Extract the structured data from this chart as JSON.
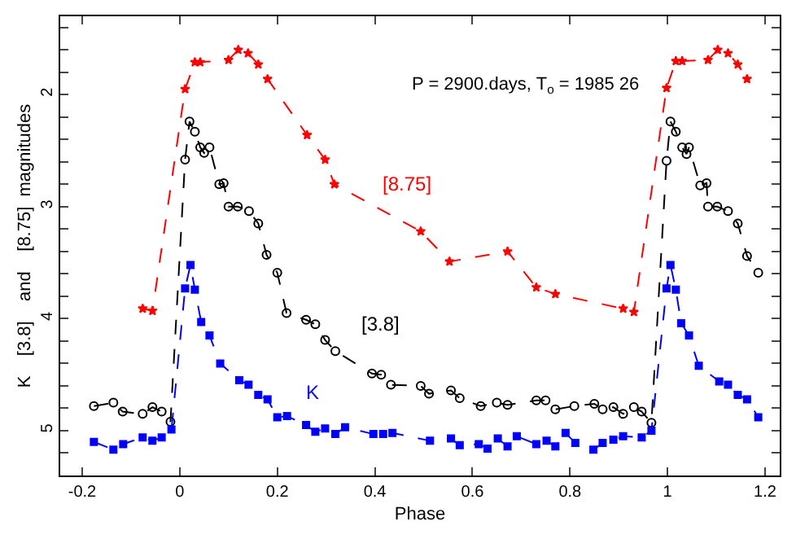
{
  "chart_data": {
    "type": "line",
    "title": "P = 2900.days, T$_{o}$ = 1985 26",
    "xlabel": "Phase",
    "ylabel": "K    [3.8]    and    [8.75]  magnitudes",
    "xlim": [
      -0.245,
      1.23
    ],
    "xticks": [
      -0.2,
      0,
      0.2,
      0.4,
      0.6,
      0.8,
      1,
      1.2
    ],
    "ylim": [
      5.4,
      1.3
    ],
    "yticks": [
      {
        "value": 1.4,
        "label": null
      },
      {
        "value": 1.6,
        "label": null
      },
      {
        "value": 1.8,
        "label": null
      },
      2,
      {
        "value": 2.2,
        "label": null
      },
      {
        "value": 2.4,
        "label": null
      },
      {
        "value": 2.6,
        "label": null
      },
      {
        "value": 2.8,
        "label": null
      },
      3,
      {
        "value": 3.2,
        "label": null
      },
      {
        "value": 3.4,
        "label": null
      },
      {
        "value": 3.6,
        "label": null
      },
      {
        "value": 3.8,
        "label": null
      },
      4,
      {
        "value": 4.2,
        "label": null
      },
      {
        "value": 4.4,
        "label": null
      },
      {
        "value": 4.6,
        "label": null
      },
      {
        "value": 4.8,
        "label": null
      },
      5,
      {
        "value": 5.2,
        "label": null
      }
    ],
    "grid": false,
    "legend": false,
    "line_style": "dashed",
    "series": [
      {
        "name": "[8.75]",
        "color": "#ff0000",
        "marker": "star",
        "x": [
          -0.076,
          -0.056,
          0.011,
          0.031,
          0.042,
          0.1,
          0.12,
          0.14,
          0.161,
          0.18,
          0.261,
          0.298,
          0.317,
          0.494,
          0.553,
          0.672,
          0.731,
          0.77,
          0.909,
          0.931,
          0.998,
          1.017,
          1.03,
          1.083,
          1.103,
          1.124,
          1.144,
          1.163
        ],
        "values": [
          3.91,
          3.93,
          1.95,
          1.71,
          1.71,
          1.69,
          1.6,
          1.63,
          1.73,
          1.86,
          2.36,
          2.58,
          2.8,
          3.22,
          3.49,
          3.4,
          3.72,
          3.78,
          3.91,
          3.94,
          1.94,
          1.7,
          1.7,
          1.69,
          1.6,
          1.63,
          1.73,
          1.86
        ]
      },
      {
        "name": "[3.8]",
        "color": "#000000",
        "marker": "circle",
        "x": [
          -0.176,
          -0.136,
          -0.117,
          -0.076,
          -0.056,
          -0.037,
          -0.019,
          0.011,
          0.02,
          0.031,
          0.042,
          0.05,
          0.061,
          0.081,
          0.09,
          0.1,
          0.119,
          0.142,
          0.161,
          0.178,
          0.2,
          0.219,
          0.259,
          0.278,
          0.298,
          0.319,
          0.394,
          0.413,
          0.433,
          0.494,
          0.511,
          0.556,
          0.574,
          0.617,
          0.65,
          0.672,
          0.731,
          0.75,
          0.77,
          0.809,
          0.85,
          0.867,
          0.889,
          0.909,
          0.931,
          0.947,
          0.967,
          0.998,
          1.006,
          1.017,
          1.03,
          1.039,
          1.044,
          1.067,
          1.08,
          1.083,
          1.102,
          1.124,
          1.144,
          1.163,
          1.186
        ],
        "values": [
          4.78,
          4.75,
          4.83,
          4.85,
          4.79,
          4.83,
          4.92,
          2.58,
          2.24,
          2.33,
          2.47,
          2.52,
          2.47,
          2.8,
          2.79,
          3.0,
          3.0,
          3.04,
          3.15,
          3.43,
          3.59,
          3.95,
          4.01,
          4.05,
          4.19,
          4.29,
          4.49,
          4.5,
          4.59,
          4.6,
          4.67,
          4.64,
          4.71,
          4.78,
          4.75,
          4.77,
          4.73,
          4.73,
          4.81,
          4.78,
          4.76,
          4.81,
          4.79,
          4.85,
          4.79,
          4.83,
          4.93,
          2.59,
          2.24,
          2.33,
          2.47,
          2.53,
          2.47,
          2.81,
          2.79,
          3.0,
          3.0,
          3.04,
          3.15,
          3.44,
          3.59
        ]
      },
      {
        "name": "K",
        "color": "#0000ff",
        "marker": "square",
        "x": [
          -0.176,
          -0.136,
          -0.116,
          -0.076,
          -0.056,
          -0.037,
          -0.017,
          0.011,
          0.022,
          0.031,
          0.044,
          0.061,
          0.083,
          0.122,
          0.141,
          0.161,
          0.18,
          0.2,
          0.22,
          0.259,
          0.278,
          0.298,
          0.319,
          0.339,
          0.397,
          0.417,
          0.436,
          0.513,
          0.556,
          0.574,
          0.613,
          0.631,
          0.652,
          0.672,
          0.691,
          0.731,
          0.752,
          0.77,
          0.791,
          0.811,
          0.848,
          0.867,
          0.889,
          0.909,
          0.947,
          0.967,
          0.998,
          1.006,
          1.017,
          1.028,
          1.044,
          1.064,
          1.106,
          1.124,
          1.144,
          1.163,
          1.186
        ],
        "values": [
          5.1,
          5.17,
          5.12,
          5.06,
          5.09,
          5.06,
          4.99,
          3.73,
          3.52,
          3.74,
          4.03,
          4.15,
          4.4,
          4.55,
          4.59,
          4.68,
          4.72,
          4.88,
          4.87,
          4.95,
          5.01,
          4.98,
          5.03,
          4.97,
          5.03,
          5.03,
          5.02,
          5.09,
          5.07,
          5.13,
          5.12,
          5.16,
          5.07,
          5.14,
          5.05,
          5.12,
          5.09,
          5.14,
          5.02,
          5.11,
          5.17,
          5.11,
          5.08,
          5.05,
          5.06,
          5.0,
          3.73,
          3.52,
          3.74,
          4.04,
          4.15,
          4.42,
          4.56,
          4.59,
          4.68,
          4.72,
          4.88
        ]
      }
    ]
  }
}
